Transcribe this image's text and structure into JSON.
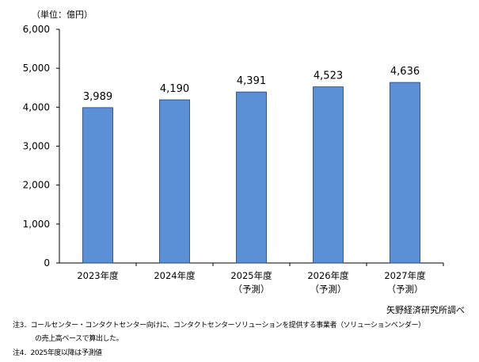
{
  "chart_data": {
    "type": "bar",
    "unit_label": "（単位：億円）",
    "categories": [
      {
        "line1": "2023年度",
        "line2": ""
      },
      {
        "line1": "2024年度",
        "line2": ""
      },
      {
        "line1": "2025年度",
        "line2": "（予測）"
      },
      {
        "line1": "2026年度",
        "line2": "（予測）"
      },
      {
        "line1": "2027年度",
        "line2": "（予測）"
      }
    ],
    "values": [
      3989,
      4190,
      4391,
      4523,
      4636
    ],
    "value_labels": [
      "3,989",
      "4,190",
      "4,391",
      "4,523",
      "4,636"
    ],
    "ylim": [
      0,
      6000
    ],
    "yticks": [
      0,
      1000,
      2000,
      3000,
      4000,
      5000,
      6000
    ],
    "ytick_labels": [
      "0",
      "1,000",
      "2,000",
      "3,000",
      "4,000",
      "5,000",
      "6,000"
    ],
    "grid": false,
    "bar_color": "#5b8fd6",
    "bar_edge_color": "#1f3f70"
  },
  "source": "矢野経済研究所調べ",
  "notes": {
    "note3_line1": "注3．コールセンター・コンタクトセンター向けに、コンタクトセンターソリューションを提供する事業者（ソリューションベンダー）",
    "note3_line2": "の売上高ベースで算出した。",
    "note4": "注4．2025年度以降は予測値"
  }
}
